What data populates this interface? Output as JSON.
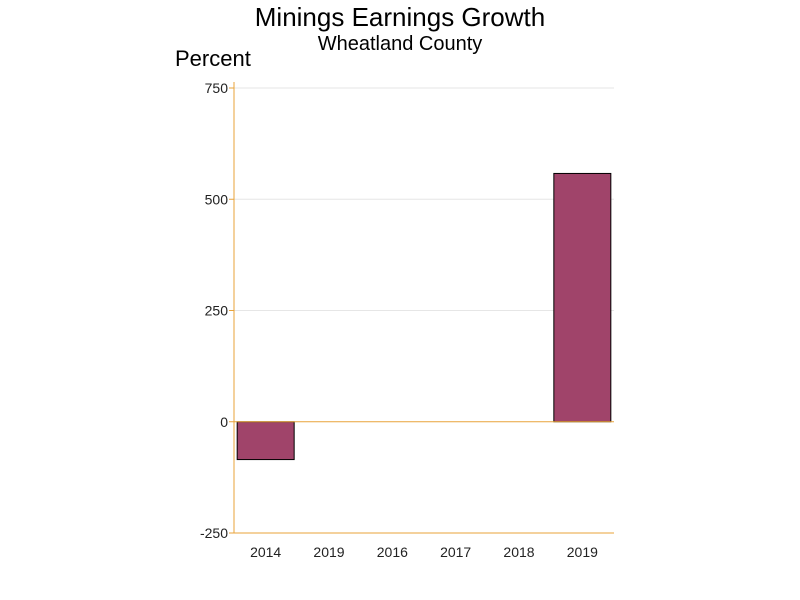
{
  "chart_data": {
    "type": "bar",
    "title": "Minings Earnings Growth",
    "subtitle": "Wheatland County",
    "ylabel": "Percent",
    "xlabel": "",
    "categories": [
      "2014",
      "2019",
      "2016",
      "2017",
      "2018",
      "2019"
    ],
    "values": [
      -85,
      0,
      0,
      0,
      0,
      558
    ],
    "ylim": [
      -250,
      750
    ],
    "yticks": [
      -250,
      0,
      250,
      500,
      750
    ],
    "ytick_labels": [
      "-250",
      "0",
      "250",
      "500",
      "750"
    ],
    "grid": true,
    "legend": "none"
  },
  "colors": {
    "bar_fill": "#a0446a",
    "bar_stroke": "#000000",
    "axis": "#e8a33a",
    "grid": "#e6e6e6",
    "zero_line": "#e8a33a"
  }
}
